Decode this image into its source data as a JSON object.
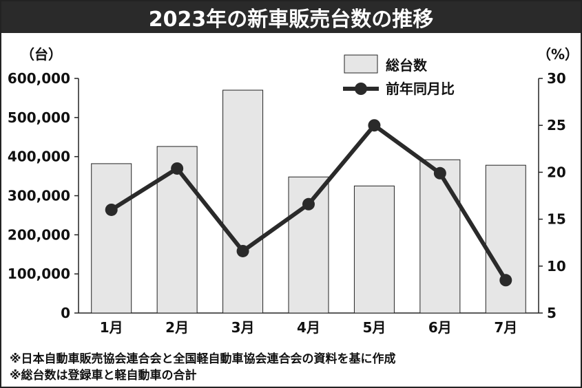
{
  "title": "2023年の新車販売台数の推移",
  "notes": [
    "※日本自動車販売協会連合会と全国軽自動車協会連合会の資料を基に作成",
    "※総台数は登録車と軽自動車の合計"
  ],
  "colors": {
    "bar_fill": "#e6e6e6",
    "bar_stroke": "#222222",
    "line": "#2a2a2a",
    "title_bg": "#2a2a2a"
  },
  "chart_data": {
    "type": "bar+line",
    "categories": [
      "1月",
      "2月",
      "3月",
      "4月",
      "5月",
      "6月",
      "7月"
    ],
    "left_unit": "（台）",
    "right_unit": "（%）",
    "left_ylim": [
      0,
      600000
    ],
    "right_ylim": [
      5,
      30
    ],
    "left_ticks": [
      "0",
      "100,000",
      "200,000",
      "300,000",
      "400,000",
      "500,000",
      "600,000"
    ],
    "right_ticks": [
      "5",
      "10",
      "15",
      "20",
      "25",
      "30"
    ],
    "legend_position": "top-right",
    "grid": false,
    "series": [
      {
        "name": "総台数",
        "type": "bar",
        "axis": "left",
        "values": [
          382000,
          426000,
          570000,
          348000,
          325000,
          392000,
          378000
        ]
      },
      {
        "name": "前年同月比",
        "type": "line",
        "axis": "right",
        "values": [
          16.0,
          20.4,
          11.6,
          16.6,
          25.0,
          19.9,
          8.5
        ]
      }
    ]
  }
}
